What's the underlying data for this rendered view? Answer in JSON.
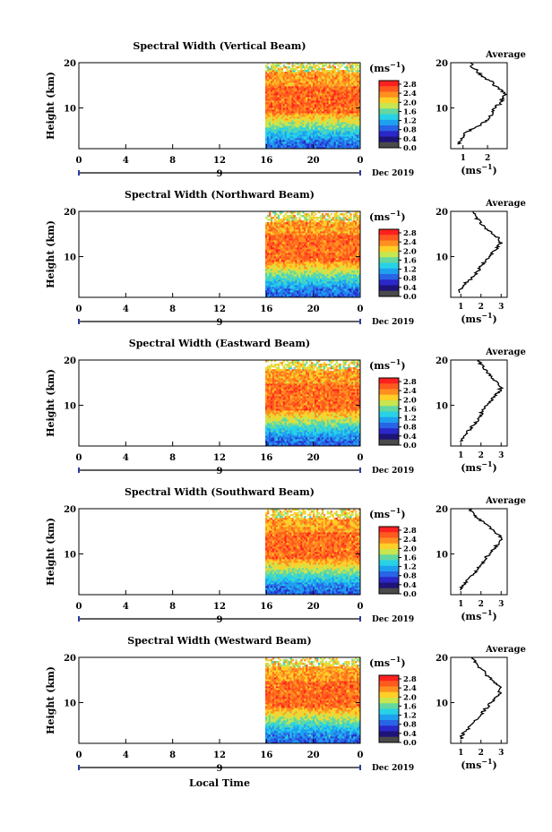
{
  "colorbar": {
    "unit": "(ms",
    "unit_exp": "−1",
    "unit_close": ")",
    "ticks": [
      "2.8",
      "2.4",
      "2.0",
      "1.6",
      "1.2",
      "0.8",
      "0.4",
      "0.0"
    ],
    "colors": [
      "#ff2020",
      "#ff5a1e",
      "#ff9020",
      "#ffd028",
      "#c8e650",
      "#64d8a0",
      "#28d2e6",
      "#1ea0f0",
      "#2864e6",
      "#2a28c8",
      "#1e1478",
      "#4a4a4a"
    ]
  },
  "date_label": "Dec 2019",
  "day_label": "9",
  "xlabel": "Local Time",
  "avg_xunit": "(ms",
  "avg_xunit_exp": "−1",
  "avg_xunit_close": ")",
  "chart_data": [
    {
      "type": "heatmap",
      "title": "Spectral Width (Vertical Beam)",
      "ylabel": "Height (km)",
      "xticks": [
        "0",
        "4",
        "8",
        "12",
        "16",
        "20",
        "0"
      ],
      "xlim": [
        0,
        24
      ],
      "yticks": [
        "20",
        "10"
      ],
      "ylim": [
        1,
        20
      ],
      "data_start_hour": 15.9,
      "average": {
        "title": "Average",
        "xticks": [
          "1",
          "2"
        ],
        "yticks": [
          "20",
          "10"
        ],
        "xlim": [
          0.5,
          2.8
        ],
        "profile_height": [
          2,
          3,
          4,
          5,
          6,
          7,
          8,
          9,
          10,
          11,
          12,
          13,
          14,
          15,
          16,
          17,
          18,
          19,
          20
        ],
        "profile_value": [
          0.8,
          0.9,
          1.0,
          1.3,
          1.6,
          1.9,
          2.1,
          2.2,
          2.3,
          2.5,
          2.6,
          2.7,
          2.5,
          2.3,
          2.1,
          1.8,
          1.6,
          1.4,
          1.3
        ]
      }
    },
    {
      "type": "heatmap",
      "title": "Spectral Width (Northward Beam)",
      "ylabel": "Height (km)",
      "xticks": [
        "0",
        "4",
        "8",
        "12",
        "16",
        "20",
        "0"
      ],
      "xlim": [
        0,
        24
      ],
      "yticks": [
        "20",
        "10"
      ],
      "ylim": [
        1,
        20
      ],
      "data_start_hour": 15.9,
      "average": {
        "title": "Average",
        "xticks": [
          "1",
          "2",
          "3"
        ],
        "yticks": [
          "20",
          "10"
        ],
        "xlim": [
          0.5,
          3.3
        ],
        "profile_height": [
          2,
          3,
          4,
          5,
          6,
          7,
          8,
          9,
          10,
          11,
          12,
          13,
          14,
          15,
          16,
          17,
          18,
          19,
          20
        ],
        "profile_value": [
          0.9,
          1.0,
          1.2,
          1.5,
          1.7,
          1.9,
          2.0,
          2.2,
          2.4,
          2.6,
          2.8,
          3.0,
          2.9,
          2.6,
          2.3,
          2.1,
          1.9,
          1.7,
          1.6
        ]
      }
    },
    {
      "type": "heatmap",
      "title": "Spectral Width (Eastward Beam)",
      "ylabel": "Height (km)",
      "xticks": [
        "0",
        "4",
        "8",
        "12",
        "16",
        "20",
        "0"
      ],
      "xlim": [
        0,
        24
      ],
      "yticks": [
        "20",
        "10"
      ],
      "ylim": [
        1,
        20
      ],
      "data_start_hour": 15.9,
      "average": {
        "title": "Average",
        "xticks": [
          "1",
          "2",
          "3"
        ],
        "yticks": [
          "20",
          "10"
        ],
        "xlim": [
          0.5,
          3.3
        ],
        "profile_height": [
          2,
          3,
          4,
          5,
          6,
          7,
          8,
          9,
          10,
          11,
          12,
          13,
          14,
          15,
          16,
          17,
          18,
          19,
          20
        ],
        "profile_value": [
          1.0,
          1.2,
          1.3,
          1.5,
          1.7,
          1.9,
          2.0,
          2.1,
          2.3,
          2.5,
          2.7,
          2.9,
          3.0,
          2.8,
          2.6,
          2.4,
          2.2,
          2.0,
          1.9
        ]
      }
    },
    {
      "type": "heatmap",
      "title": "Spectral Width (Southward Beam)",
      "ylabel": "Height (km)",
      "xticks": [
        "0",
        "4",
        "8",
        "12",
        "16",
        "20",
        "0"
      ],
      "xlim": [
        0,
        24
      ],
      "yticks": [
        "20",
        "10"
      ],
      "ylim": [
        1,
        20
      ],
      "data_start_hour": 15.9,
      "average": {
        "title": "Average",
        "xticks": [
          "1",
          "2",
          "3"
        ],
        "yticks": [
          "20",
          "10"
        ],
        "xlim": [
          0.5,
          3.3
        ],
        "profile_height": [
          2,
          3,
          4,
          5,
          6,
          7,
          8,
          9,
          10,
          11,
          12,
          13,
          14,
          15,
          16,
          17,
          18,
          19,
          20
        ],
        "profile_value": [
          1.0,
          1.1,
          1.3,
          1.5,
          1.7,
          1.9,
          2.1,
          2.2,
          2.4,
          2.6,
          2.8,
          3.0,
          2.9,
          2.7,
          2.4,
          2.1,
          1.8,
          1.6,
          1.4
        ]
      }
    },
    {
      "type": "heatmap",
      "title": "Spectral Width (Westward Beam)",
      "ylabel": "Height (km)",
      "xticks": [
        "0",
        "4",
        "8",
        "12",
        "16",
        "20",
        "0"
      ],
      "xlim": [
        0,
        24
      ],
      "yticks": [
        "20",
        "10"
      ],
      "ylim": [
        1,
        20
      ],
      "data_start_hour": 15.9,
      "average": {
        "title": "Average",
        "xticks": [
          "1",
          "2",
          "3"
        ],
        "yticks": [
          "20",
          "10"
        ],
        "xlim": [
          0.5,
          3.3
        ],
        "profile_height": [
          2,
          3,
          4,
          5,
          6,
          7,
          8,
          9,
          10,
          11,
          12,
          13,
          14,
          15,
          16,
          17,
          18,
          19,
          20
        ],
        "profile_value": [
          1.0,
          1.1,
          1.3,
          1.5,
          1.7,
          1.9,
          2.1,
          2.3,
          2.5,
          2.7,
          2.9,
          3.0,
          2.8,
          2.6,
          2.3,
          2.1,
          1.9,
          1.7,
          1.6
        ]
      }
    }
  ]
}
